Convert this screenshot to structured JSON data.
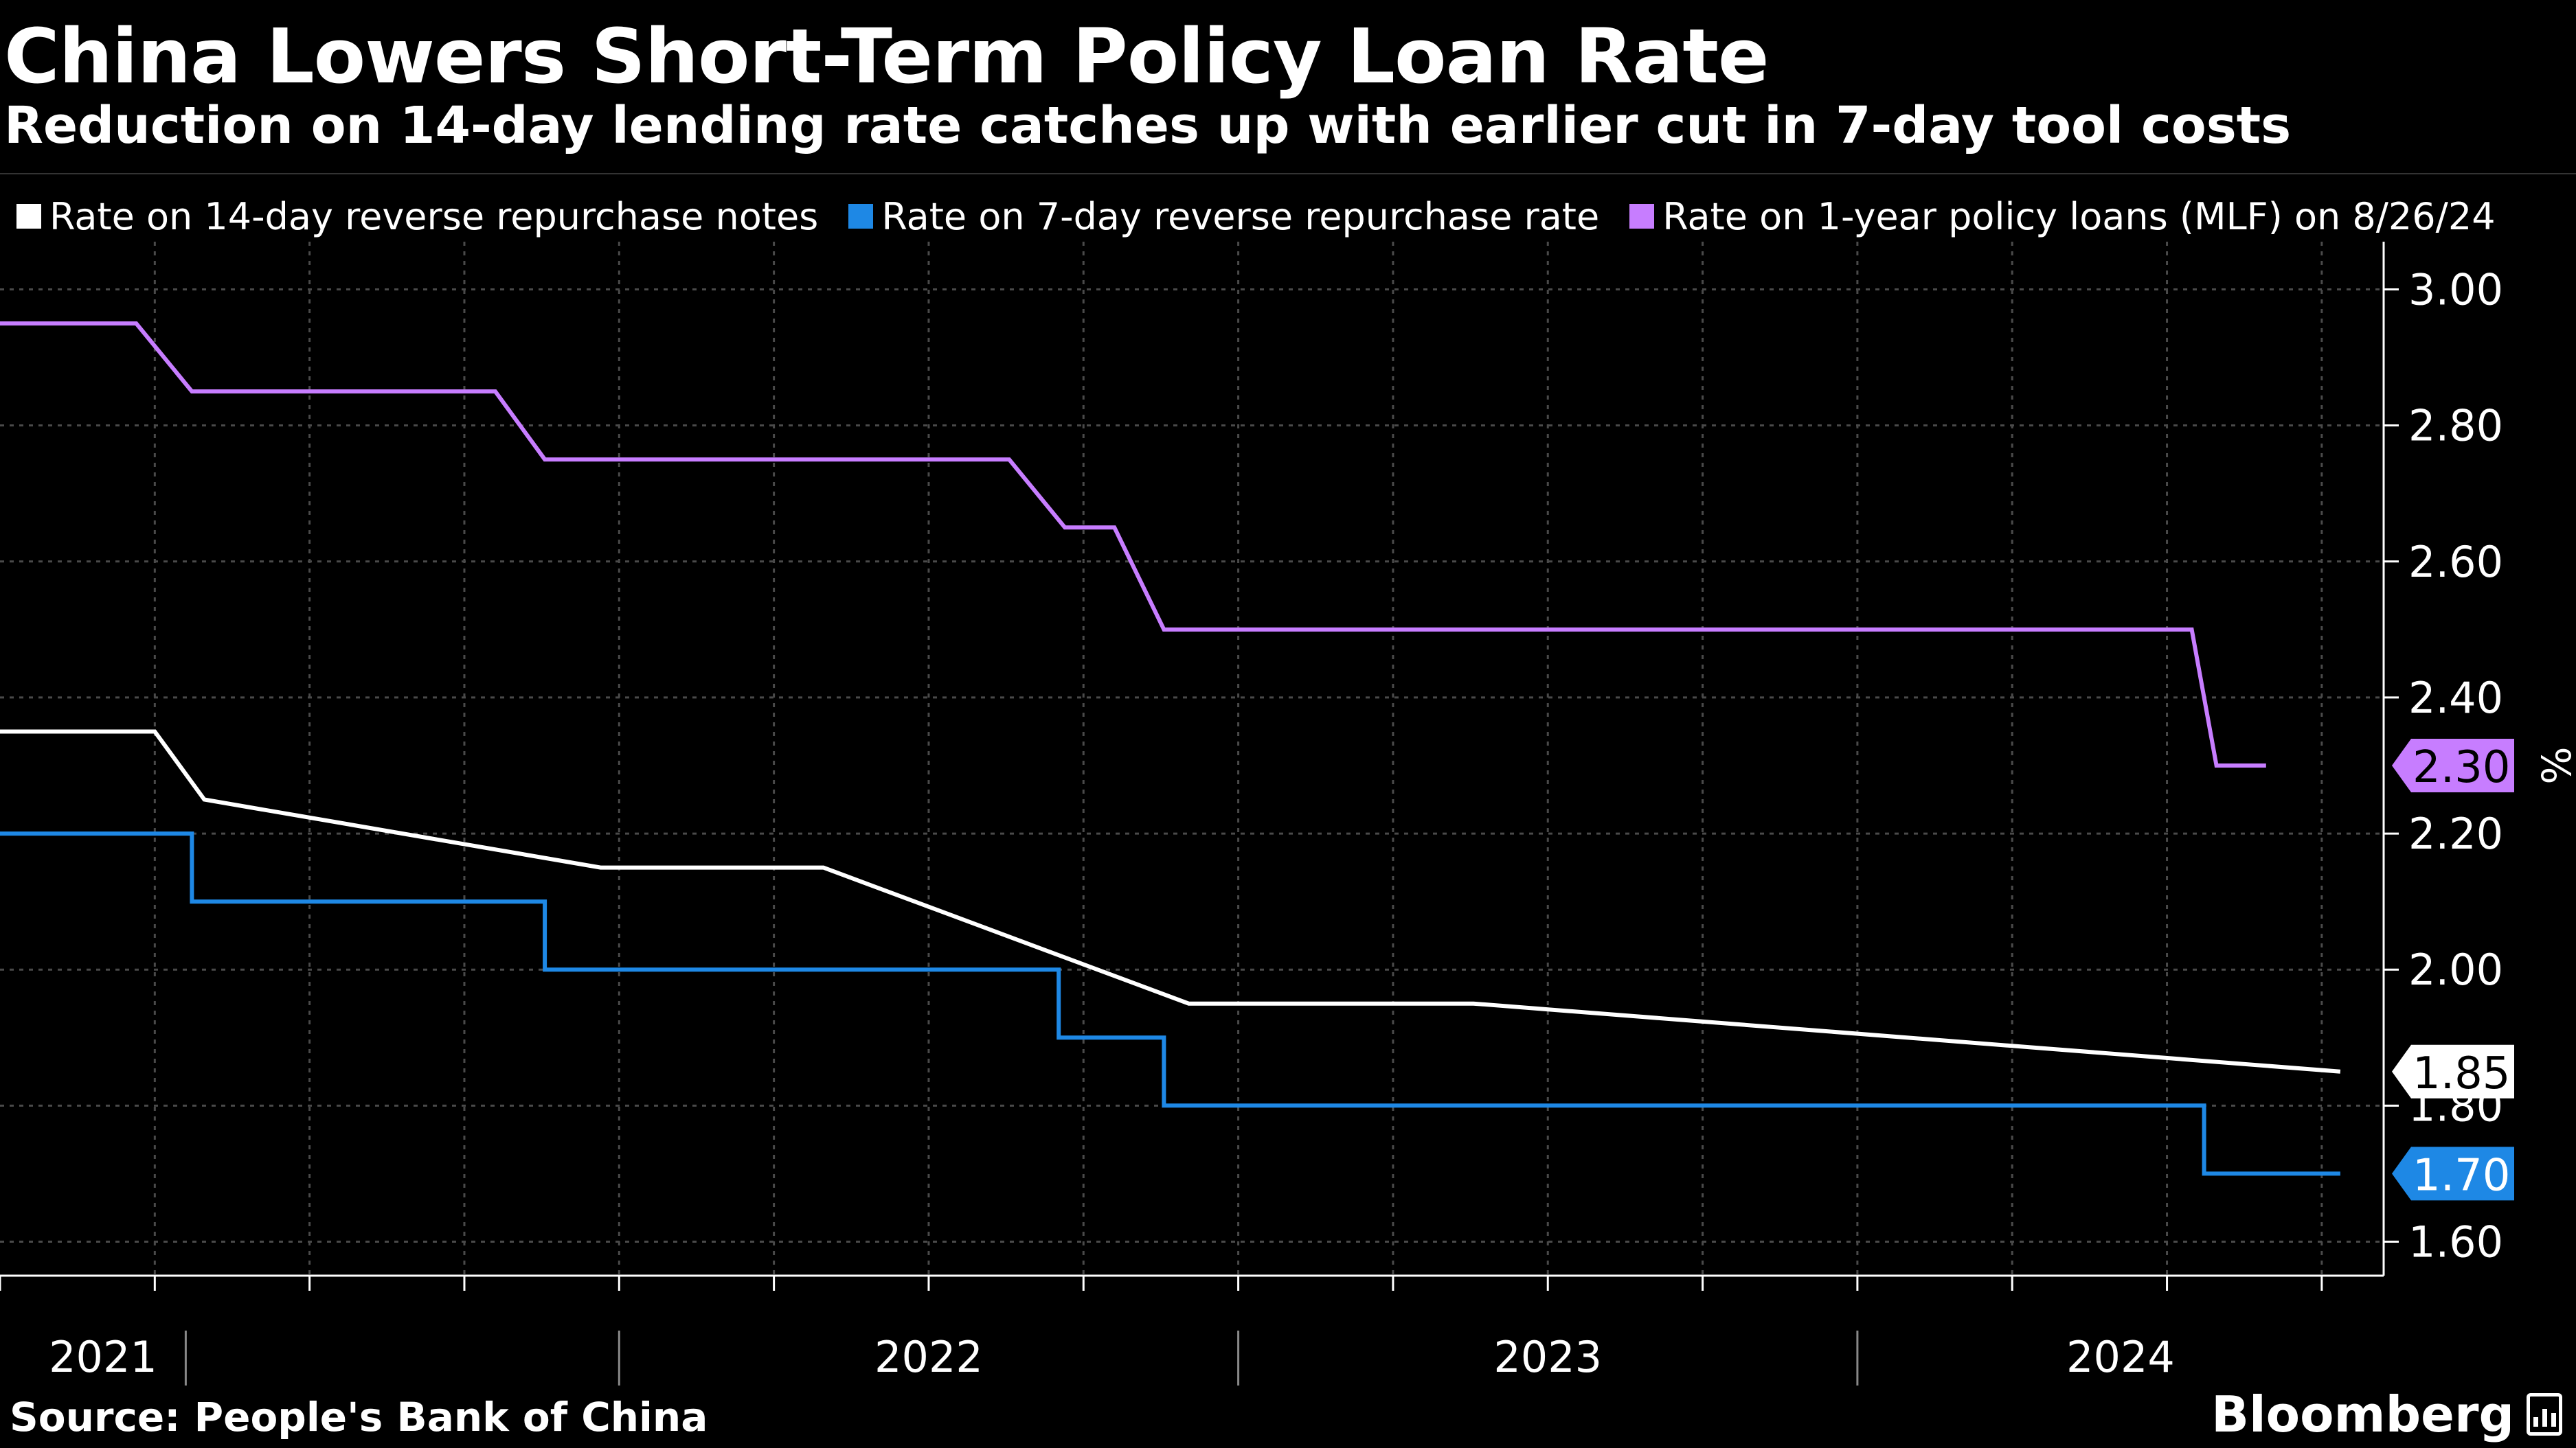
{
  "header": {
    "title": "China Lowers Short-Term Policy Loan Rate",
    "subtitle": "Reduction on 14-day lending rate catches up with earlier cut in 7-day tool costs"
  },
  "footer": {
    "source": "Source: People's Bank of China",
    "brand": "Bloomberg"
  },
  "colors": {
    "background": "#000000",
    "grid": "#4a4a4a",
    "rate_14d": "#ffffff",
    "rate_7d": "#1e88e5",
    "mlf": "#c77dff"
  },
  "chart_data": {
    "type": "line",
    "title": "China Lowers Short-Term Policy Loan Rate",
    "subtitle": "Reduction on 14-day lending rate catches up with earlier cut in 7-day tool costs",
    "xlabel": "",
    "ylabel": "%",
    "x_range": [
      2021.0,
      2024.85
    ],
    "ylim": [
      1.55,
      3.05
    ],
    "y_ticks": [
      1.6,
      1.8,
      2.0,
      2.2,
      2.4,
      2.6,
      2.8,
      3.0
    ],
    "y_tick_labels": [
      "1.60",
      "1.80",
      "2.00",
      "2.20",
      "2.40",
      "2.60",
      "2.80",
      "3.00"
    ],
    "x_labels": [
      {
        "label": "2021",
        "x": 2021.0
      },
      {
        "label": "2022",
        "x": 2022.0
      },
      {
        "label": "2023",
        "x": 2023.0
      },
      {
        "label": "2024",
        "x": 2024.0
      }
    ],
    "year_boundaries": [
      2021.3,
      2022.0,
      2023.0,
      2024.0
    ],
    "grid": true,
    "legend_position": "top",
    "series": [
      {
        "name": "Rate on 14-day reverse repurchase notes",
        "key": "rate_14d",
        "end_label": "1.85",
        "points": [
          [
            2021.0,
            2.35
          ],
          [
            2021.25,
            2.35
          ],
          [
            2021.33,
            2.25
          ],
          [
            2021.97,
            2.15
          ],
          [
            2022.33,
            2.15
          ],
          [
            2022.92,
            1.95
          ],
          [
            2023.38,
            1.95
          ],
          [
            2024.78,
            1.85
          ]
        ]
      },
      {
        "name": "Rate on 7-day reverse repurchase rate",
        "key": "rate_7d",
        "end_label": "1.70",
        "points": [
          [
            2021.0,
            2.2
          ],
          [
            2021.31,
            2.2
          ],
          [
            2021.31,
            2.1
          ],
          [
            2021.88,
            2.1
          ],
          [
            2021.88,
            2.0
          ],
          [
            2022.71,
            2.0
          ],
          [
            2022.71,
            1.9
          ],
          [
            2022.88,
            1.9
          ],
          [
            2022.88,
            1.8
          ],
          [
            2024.56,
            1.8
          ],
          [
            2024.56,
            1.7
          ],
          [
            2024.78,
            1.7
          ]
        ]
      },
      {
        "name": "Rate on 1-year policy loans (MLF) on 8/26/24",
        "key": "mlf",
        "end_label": "2.30",
        "points": [
          [
            2021.0,
            2.95
          ],
          [
            2021.22,
            2.95
          ],
          [
            2021.31,
            2.85
          ],
          [
            2021.8,
            2.85
          ],
          [
            2021.88,
            2.75
          ],
          [
            2022.63,
            2.75
          ],
          [
            2022.72,
            2.65
          ],
          [
            2022.8,
            2.65
          ],
          [
            2022.88,
            2.5
          ],
          [
            2024.54,
            2.5
          ],
          [
            2024.58,
            2.3
          ],
          [
            2024.66,
            2.3
          ]
        ]
      }
    ]
  }
}
